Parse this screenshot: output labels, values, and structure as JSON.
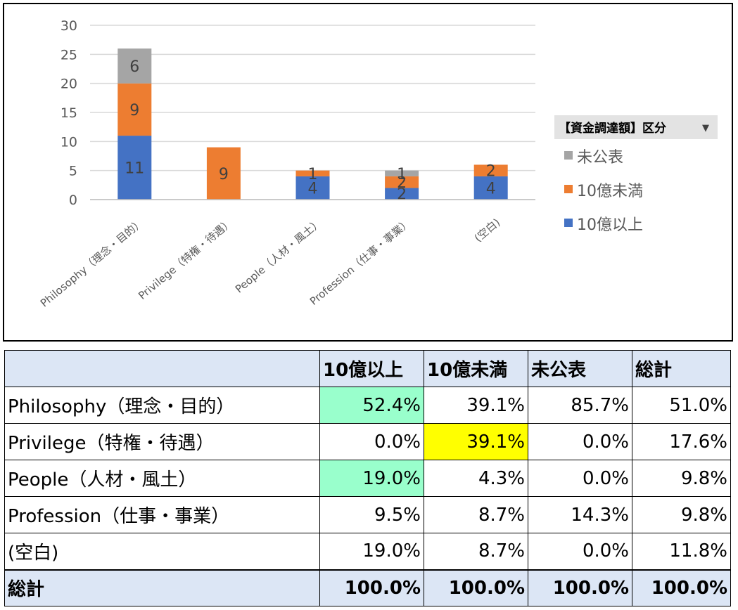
{
  "chart_data": {
    "type": "bar",
    "stacked": true,
    "categories": [
      "Philosophy（理念・目的）",
      "Privilege（特権・待遇）",
      "People（人材・風土）",
      "Profession（仕事・事業）",
      "(空白)"
    ],
    "series": [
      {
        "name": "10億以上",
        "color": "#4472c4",
        "values": [
          11,
          0,
          4,
          2,
          4
        ]
      },
      {
        "name": "10億未満",
        "color": "#ed7d31",
        "values": [
          9,
          9,
          1,
          2,
          2
        ]
      },
      {
        "name": "未公表",
        "color": "#a5a5a5",
        "values": [
          6,
          0,
          0,
          1,
          0
        ]
      }
    ],
    "ylim": [
      0,
      30
    ],
    "yticks": [
      0,
      5,
      10,
      15,
      20,
      25,
      30
    ],
    "grid": true,
    "legend_title": "【資金調達額】区分",
    "legend_order": [
      "未公表",
      "10億未満",
      "10億以上"
    ],
    "legend_position": "right"
  },
  "table": {
    "headers": [
      "",
      "10億以上",
      "10億未満",
      "未公表",
      "総計"
    ],
    "rows": [
      {
        "label": "Philosophy（理念・目的）",
        "cells": [
          "52.4%",
          "39.1%",
          "85.7%",
          "51.0%"
        ],
        "highlight": [
          "green",
          "",
          "",
          ""
        ]
      },
      {
        "label": "Privilege（特権・待遇）",
        "cells": [
          "0.0%",
          "39.1%",
          "0.0%",
          "17.6%"
        ],
        "highlight": [
          "",
          "yellow",
          "",
          ""
        ]
      },
      {
        "label": "People（人材・風土）",
        "cells": [
          "19.0%",
          "4.3%",
          "0.0%",
          "9.8%"
        ],
        "highlight": [
          "green",
          "",
          "",
          ""
        ]
      },
      {
        "label": "Profession（仕事・事業）",
        "cells": [
          "9.5%",
          "8.7%",
          "14.3%",
          "9.8%"
        ],
        "highlight": [
          "",
          "",
          "",
          ""
        ]
      },
      {
        "label": "(空白)",
        "cells": [
          "19.0%",
          "8.7%",
          "0.0%",
          "11.8%"
        ],
        "highlight": [
          "",
          "",
          "",
          ""
        ]
      }
    ],
    "total": {
      "label": "総計",
      "cells": [
        "100.0%",
        "100.0%",
        "100.0%",
        "100.0%"
      ]
    }
  }
}
